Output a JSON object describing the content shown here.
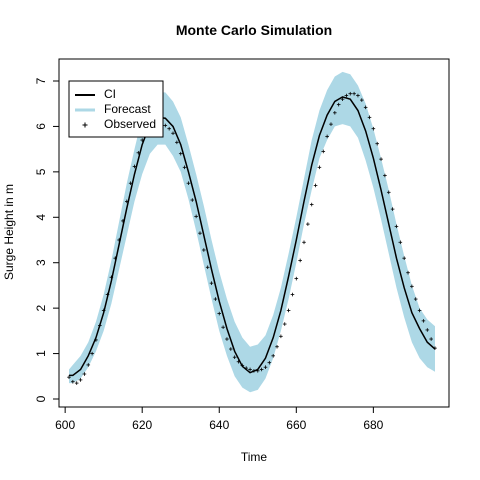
{
  "chart_data": {
    "type": "line",
    "title": "Monte Carlo Simulation",
    "xlabel": "Time",
    "ylabel": "Surge Height in m",
    "xlim": [
      601,
      696
    ],
    "ylim": [
      0,
      7
    ],
    "x_ticks": [
      600,
      620,
      640,
      660,
      680
    ],
    "y_ticks": [
      0,
      1,
      2,
      3,
      4,
      5,
      6,
      7
    ],
    "grid": false,
    "legend": {
      "placement": "top-left",
      "entries": [
        "CI",
        "Forecast",
        "Observed"
      ]
    },
    "colors": {
      "ci_line": "#000000",
      "forecast_band": "#add8e6",
      "observed_points": "#000000"
    },
    "series": [
      {
        "name": "CI",
        "kind": "line",
        "x": [
          601,
          602,
          604,
          606,
          608,
          610,
          612,
          614,
          616,
          618,
          620,
          622,
          624,
          626,
          628,
          630,
          632,
          634,
          636,
          638,
          640,
          642,
          644,
          646,
          648,
          650,
          652,
          654,
          656,
          658,
          660,
          662,
          664,
          666,
          668,
          670,
          672,
          674,
          676,
          678,
          680,
          682,
          684,
          686,
          688,
          690,
          692,
          694,
          696
        ],
        "y": [
          0.52,
          0.52,
          0.65,
          0.95,
          1.35,
          1.9,
          2.6,
          3.4,
          4.2,
          4.95,
          5.6,
          6.05,
          6.2,
          6.18,
          6.0,
          5.6,
          5.0,
          4.35,
          3.6,
          2.85,
          2.15,
          1.55,
          1.05,
          0.72,
          0.58,
          0.65,
          0.9,
          1.35,
          1.95,
          2.7,
          3.5,
          4.35,
          5.15,
          5.8,
          6.25,
          6.55,
          6.65,
          6.6,
          6.35,
          5.9,
          5.3,
          4.6,
          3.85,
          3.1,
          2.45,
          1.9,
          1.55,
          1.25,
          1.1
        ]
      },
      {
        "name": "Forecast",
        "kind": "band",
        "x": [
          601,
          602,
          604,
          606,
          608,
          610,
          612,
          614,
          616,
          618,
          620,
          622,
          624,
          626,
          628,
          630,
          632,
          634,
          636,
          638,
          640,
          642,
          644,
          646,
          648,
          650,
          652,
          654,
          656,
          658,
          660,
          662,
          664,
          666,
          668,
          670,
          672,
          674,
          676,
          678,
          680,
          682,
          684,
          686,
          688,
          690,
          692,
          694,
          696
        ],
        "lower": [
          0.35,
          0.35,
          0.45,
          0.7,
          1.05,
          1.5,
          2.1,
          2.85,
          3.6,
          4.35,
          4.95,
          5.4,
          5.6,
          5.6,
          5.35,
          5.0,
          4.4,
          3.7,
          2.95,
          2.2,
          1.5,
          0.95,
          0.5,
          0.25,
          0.15,
          0.2,
          0.45,
          0.9,
          1.5,
          2.2,
          3.0,
          3.85,
          4.6,
          5.3,
          5.7,
          6.0,
          6.05,
          6.0,
          5.75,
          5.25,
          4.65,
          3.95,
          3.2,
          2.45,
          1.8,
          1.25,
          0.9,
          0.7,
          0.6
        ],
        "upper": [
          0.65,
          0.75,
          0.95,
          1.25,
          1.7,
          2.3,
          3.05,
          3.9,
          4.75,
          5.5,
          6.2,
          6.6,
          6.75,
          6.75,
          6.55,
          6.2,
          5.6,
          4.95,
          4.25,
          3.5,
          2.8,
          2.2,
          1.7,
          1.35,
          1.15,
          1.2,
          1.4,
          1.85,
          2.45,
          3.2,
          4.0,
          4.85,
          5.7,
          6.35,
          6.8,
          7.1,
          7.2,
          7.15,
          6.9,
          6.5,
          5.95,
          5.3,
          4.6,
          3.85,
          3.15,
          2.5,
          2.0,
          1.75,
          1.6
        ]
      },
      {
        "name": "Observed",
        "kind": "points",
        "x": [
          601,
          602,
          603,
          604,
          605,
          606,
          607,
          608,
          609,
          610,
          611,
          612,
          613,
          614,
          615,
          616,
          617,
          618,
          619,
          620,
          621,
          622,
          623,
          624,
          625,
          626,
          627,
          628,
          629,
          630,
          631,
          632,
          633,
          634,
          635,
          636,
          637,
          638,
          639,
          640,
          641,
          642,
          643,
          644,
          645,
          646,
          647,
          648,
          649,
          650,
          651,
          652,
          653,
          654,
          655,
          656,
          657,
          658,
          659,
          660,
          661,
          662,
          663,
          664,
          665,
          666,
          667,
          668,
          669,
          670,
          671,
          672,
          673,
          674,
          675,
          676,
          677,
          678,
          679,
          680,
          681,
          682,
          683,
          684,
          685,
          686,
          687,
          688,
          689,
          690,
          691,
          692,
          693,
          694,
          695,
          696
        ],
        "y": [
          0.48,
          0.38,
          0.35,
          0.42,
          0.55,
          0.75,
          1.0,
          1.3,
          1.62,
          1.95,
          2.3,
          2.68,
          3.1,
          3.5,
          3.92,
          4.35,
          4.75,
          5.12,
          5.42,
          5.7,
          5.88,
          5.98,
          6.05,
          6.08,
          6.08,
          6.02,
          5.95,
          5.85,
          5.65,
          5.4,
          5.1,
          4.75,
          4.38,
          4.02,
          3.65,
          3.28,
          2.9,
          2.55,
          2.2,
          1.88,
          1.58,
          1.32,
          1.1,
          0.92,
          0.82,
          0.74,
          0.68,
          0.65,
          0.62,
          0.62,
          0.65,
          0.7,
          0.8,
          0.95,
          1.15,
          1.38,
          1.65,
          1.95,
          2.3,
          2.65,
          3.05,
          3.45,
          3.85,
          4.28,
          4.7,
          5.1,
          5.45,
          5.78,
          6.05,
          6.3,
          6.48,
          6.6,
          6.68,
          6.72,
          6.72,
          6.68,
          6.58,
          6.42,
          6.2,
          5.95,
          5.62,
          5.28,
          4.92,
          4.55,
          4.18,
          3.8,
          3.45,
          3.1,
          2.78,
          2.48,
          2.2,
          1.95,
          1.72,
          1.52,
          1.32,
          1.12
        ]
      }
    ]
  }
}
